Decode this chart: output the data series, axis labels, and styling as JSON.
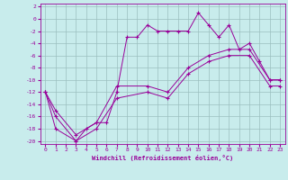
{
  "xlabel": "Windchill (Refroidissement éolien,°C)",
  "bg_color": "#c8ecec",
  "grid_color": "#9bbfbf",
  "line_color": "#990099",
  "xlim": [
    -0.5,
    23.5
  ],
  "ylim": [
    -20.5,
    2.5
  ],
  "xticks": [
    0,
    1,
    2,
    3,
    4,
    5,
    6,
    7,
    8,
    9,
    10,
    11,
    12,
    13,
    14,
    15,
    16,
    17,
    18,
    19,
    20,
    21,
    22,
    23
  ],
  "yticks": [
    2,
    0,
    -2,
    -4,
    -6,
    -8,
    -10,
    -12,
    -14,
    -16,
    -18,
    -20
  ],
  "series1_x": [
    0,
    1,
    3,
    4,
    5,
    6,
    7,
    8,
    9,
    10,
    11,
    12,
    13,
    14,
    15,
    16,
    17,
    18,
    19,
    20,
    21,
    22,
    23
  ],
  "series1_y": [
    -12,
    -18,
    -20,
    -18,
    -17,
    -17,
    -12,
    -3,
    -3,
    -1,
    -2,
    -2,
    -2,
    -2,
    1,
    -1,
    -3,
    -1,
    -5,
    -4,
    -7,
    -10,
    -10
  ],
  "series2_x": [
    0,
    1,
    3,
    5,
    7,
    10,
    12,
    14,
    16,
    18,
    20,
    22,
    23
  ],
  "series2_y": [
    -12,
    -15,
    -19,
    -17,
    -11,
    -11,
    -12,
    -8,
    -6,
    -5,
    -5,
    -10,
    -10
  ],
  "series3_x": [
    0,
    1,
    3,
    5,
    7,
    10,
    12,
    14,
    16,
    18,
    20,
    22,
    23
  ],
  "series3_y": [
    -12,
    -16,
    -20,
    -18,
    -13,
    -12,
    -13,
    -9,
    -7,
    -6,
    -6,
    -11,
    -11
  ],
  "label_fontsize": 4.5,
  "xlabel_fontsize": 5.0
}
